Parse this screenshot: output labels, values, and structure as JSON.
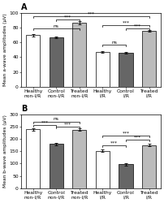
{
  "chart_data": [
    {
      "type": "bar",
      "title": "A",
      "y_label": "Mean a-wave amplitudes (µV)",
      "categories": [
        "Healthy\nnon-I/R",
        "Control\nnon-I/R",
        "Treated\nnon-I/R",
        "Healthy\nI/R",
        "Control\nI/R",
        "Treated\nI/R"
      ],
      "values": [
        70,
        67,
        87,
        47,
        46,
        76
      ],
      "errors": [
        1.5,
        1.2,
        1.8,
        1.2,
        1.2,
        1.5
      ],
      "colors": [
        "white",
        "#666666",
        "#bbbbbb",
        "white",
        "#666666",
        "#bbbbbb"
      ],
      "ylim": [
        0,
        100
      ],
      "yticks": [
        0,
        20,
        40,
        60,
        80,
        100
      ],
      "brackets": [
        {
          "from": 0,
          "to": 2,
          "y": 79,
          "label": "ns"
        },
        {
          "from": 1,
          "to": 2,
          "y": 91,
          "label": "***"
        },
        {
          "from": 0,
          "to": 5,
          "y": 96,
          "label": "***"
        },
        {
          "from": 3,
          "to": 4,
          "y": 57,
          "label": "ns"
        },
        {
          "from": 3,
          "to": 5,
          "y": 84,
          "label": "***"
        },
        {
          "from": 4,
          "to": 5,
          "y": 79,
          "label": "***"
        }
      ]
    },
    {
      "type": "bar",
      "title": "B",
      "y_label": "Mean b-wave amplitudes (µV)",
      "categories": [
        "Healthy\nnon-I/R",
        "Control\nnon-I/R",
        "Treated\nnon-I/R",
        "Healthy\nI/R",
        "Control\nI/R",
        "Treated\nI/R"
      ],
      "values": [
        240,
        180,
        238,
        152,
        97,
        175
      ],
      "errors": [
        5,
        5,
        5,
        5,
        5,
        5
      ],
      "colors": [
        "white",
        "#666666",
        "#bbbbbb",
        "white",
        "#666666",
        "#bbbbbb"
      ],
      "ylim": [
        0,
        300
      ],
      "yticks": [
        0,
        50,
        100,
        150,
        200,
        250,
        300
      ],
      "brackets": [
        {
          "from": 0,
          "to": 1,
          "y": 258,
          "label": "***"
        },
        {
          "from": 1,
          "to": 2,
          "y": 250,
          "label": "***"
        },
        {
          "from": 0,
          "to": 2,
          "y": 272,
          "label": "ns"
        },
        {
          "from": 3,
          "to": 4,
          "y": 174,
          "label": "***"
        },
        {
          "from": 4,
          "to": 5,
          "y": 198,
          "label": "***"
        },
        {
          "from": 3,
          "to": 5,
          "y": 215,
          "label": "***"
        }
      ]
    }
  ]
}
